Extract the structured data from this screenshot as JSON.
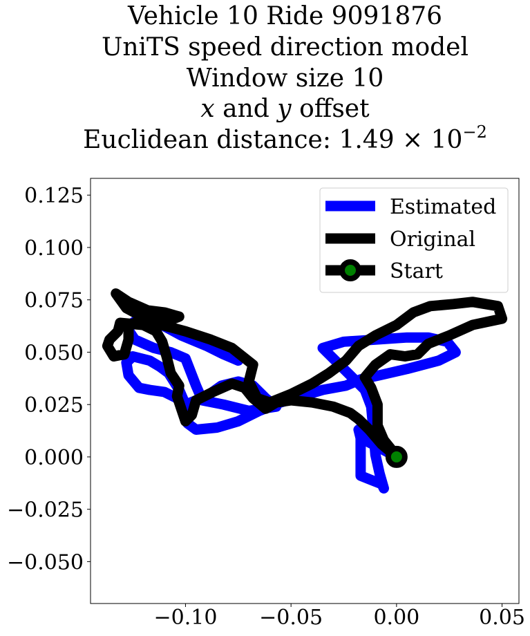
{
  "chart_data": {
    "type": "line",
    "title_lines": {
      "line1": "Vehicle 10 Ride 9091876",
      "line2": "UniTS speed direction model",
      "line3": "Window size 10",
      "line4_x": "x",
      "line4_and": " and ",
      "line4_y": "y",
      "line4_rest": " offset",
      "line5_prefix": "Euclidean distance: ",
      "line5_mantissa": "1.49 × 10",
      "line5_exponent": "−2"
    },
    "xlabel": "",
    "ylabel": "",
    "xlim": [
      -0.145,
      0.058
    ],
    "ylim": [
      -0.07,
      0.133
    ],
    "x_ticks": [
      {
        "value": -0.1,
        "label": "−0.10"
      },
      {
        "value": -0.05,
        "label": "−0.05"
      },
      {
        "value": 0.0,
        "label": "0.00"
      },
      {
        "value": 0.05,
        "label": "0.05"
      }
    ],
    "y_ticks": [
      {
        "value": -0.05,
        "label": "−0.050"
      },
      {
        "value": -0.025,
        "label": "−0.025"
      },
      {
        "value": 0.0,
        "label": "0.000"
      },
      {
        "value": 0.025,
        "label": "0.025"
      },
      {
        "value": 0.05,
        "label": "0.050"
      },
      {
        "value": 0.075,
        "label": "0.075"
      },
      {
        "value": 0.1,
        "label": "0.100"
      },
      {
        "value": 0.125,
        "label": "0.125"
      }
    ],
    "grid": false,
    "legend_position": "top-right",
    "legend": [
      {
        "label": "Estimated"
      },
      {
        "label": "Original"
      },
      {
        "label": "Start"
      }
    ],
    "series": [
      {
        "name": "Estimated",
        "color": "#0000ff",
        "points": [
          [
            0.0,
            0.0
          ],
          [
            -0.015,
            0.008
          ],
          [
            -0.018,
            0.013
          ],
          [
            -0.017,
            0.009
          ],
          [
            -0.017,
            0.0
          ],
          [
            -0.017,
            -0.009
          ],
          [
            -0.012,
            -0.011
          ],
          [
            -0.007,
            -0.013
          ],
          [
            -0.006,
            -0.015
          ],
          [
            -0.008,
            -0.008
          ],
          [
            -0.01,
            0.001
          ],
          [
            -0.011,
            0.013
          ],
          [
            -0.012,
            0.024
          ],
          [
            -0.015,
            0.032
          ],
          [
            -0.02,
            0.037
          ],
          [
            -0.025,
            0.042
          ],
          [
            -0.03,
            0.047
          ],
          [
            -0.035,
            0.052
          ],
          [
            -0.025,
            0.055
          ],
          [
            -0.01,
            0.056
          ],
          [
            0.005,
            0.057
          ],
          [
            0.015,
            0.057
          ],
          [
            0.024,
            0.055
          ],
          [
            0.028,
            0.05
          ],
          [
            0.02,
            0.046
          ],
          [
            0.005,
            0.042
          ],
          [
            -0.008,
            0.039
          ],
          [
            -0.017,
            0.037
          ],
          [
            -0.024,
            0.034
          ],
          [
            -0.035,
            0.032
          ],
          [
            -0.045,
            0.029
          ],
          [
            -0.055,
            0.026
          ],
          [
            -0.065,
            0.022
          ],
          [
            -0.075,
            0.017
          ],
          [
            -0.085,
            0.014
          ],
          [
            -0.095,
            0.013
          ],
          [
            -0.099,
            0.016
          ],
          [
            -0.1,
            0.022
          ],
          [
            -0.104,
            0.028
          ],
          [
            -0.11,
            0.031
          ],
          [
            -0.117,
            0.032
          ],
          [
            -0.122,
            0.033
          ],
          [
            -0.127,
            0.039
          ],
          [
            -0.128,
            0.045
          ],
          [
            -0.125,
            0.048
          ],
          [
            -0.117,
            0.046
          ],
          [
            -0.112,
            0.043
          ],
          [
            -0.108,
            0.04
          ],
          [
            -0.103,
            0.032
          ],
          [
            -0.1,
            0.025
          ],
          [
            -0.09,
            0.029
          ],
          [
            -0.083,
            0.034
          ],
          [
            -0.075,
            0.036
          ],
          [
            -0.068,
            0.034
          ],
          [
            -0.062,
            0.028
          ],
          [
            -0.057,
            0.024
          ],
          [
            -0.07,
            0.022
          ],
          [
            -0.082,
            0.025
          ],
          [
            -0.092,
            0.027
          ],
          [
            -0.095,
            0.034
          ],
          [
            -0.1,
            0.047
          ],
          [
            -0.107,
            0.05
          ],
          [
            -0.115,
            0.052
          ],
          [
            -0.124,
            0.056
          ],
          [
            -0.128,
            0.062
          ],
          [
            -0.122,
            0.066
          ],
          [
            -0.113,
            0.064
          ],
          [
            -0.102,
            0.058
          ],
          [
            -0.09,
            0.053
          ],
          [
            -0.082,
            0.049
          ],
          [
            -0.075,
            0.046
          ]
        ]
      },
      {
        "name": "Original",
        "color": "#000000",
        "points": [
          [
            0.0,
            0.0
          ],
          [
            -0.007,
            0.006
          ],
          [
            -0.013,
            0.013
          ],
          [
            -0.018,
            0.018
          ],
          [
            -0.022,
            0.021
          ],
          [
            -0.03,
            0.024
          ],
          [
            -0.04,
            0.026
          ],
          [
            -0.05,
            0.027
          ],
          [
            -0.057,
            0.026
          ],
          [
            -0.062,
            0.023
          ],
          [
            -0.068,
            0.028
          ],
          [
            -0.072,
            0.033
          ],
          [
            -0.078,
            0.035
          ],
          [
            -0.087,
            0.031
          ],
          [
            -0.095,
            0.027
          ],
          [
            -0.097,
            0.02
          ],
          [
            -0.1,
            0.017
          ],
          [
            -0.102,
            0.023
          ],
          [
            -0.104,
            0.029
          ],
          [
            -0.103,
            0.034
          ],
          [
            -0.107,
            0.04
          ],
          [
            -0.109,
            0.048
          ],
          [
            -0.111,
            0.055
          ],
          [
            -0.114,
            0.06
          ],
          [
            -0.12,
            0.063
          ],
          [
            -0.131,
            0.064
          ],
          [
            -0.132,
            0.06
          ],
          [
            -0.136,
            0.056
          ],
          [
            -0.137,
            0.053
          ],
          [
            -0.134,
            0.048
          ],
          [
            -0.129,
            0.049
          ],
          [
            -0.127,
            0.056
          ],
          [
            -0.127,
            0.063
          ],
          [
            -0.118,
            0.066
          ],
          [
            -0.108,
            0.065
          ],
          [
            -0.103,
            0.067
          ],
          [
            -0.11,
            0.069
          ],
          [
            -0.118,
            0.07
          ],
          [
            -0.127,
            0.074
          ],
          [
            -0.133,
            0.078
          ],
          [
            -0.128,
            0.071
          ],
          [
            -0.115,
            0.064
          ],
          [
            -0.1,
            0.06
          ],
          [
            -0.088,
            0.056
          ],
          [
            -0.078,
            0.052
          ],
          [
            -0.068,
            0.044
          ],
          [
            -0.07,
            0.036
          ],
          [
            -0.066,
            0.028
          ],
          [
            -0.06,
            0.026
          ],
          [
            -0.05,
            0.03
          ],
          [
            -0.04,
            0.035
          ],
          [
            -0.032,
            0.04
          ],
          [
            -0.024,
            0.046
          ],
          [
            -0.018,
            0.053
          ],
          [
            -0.01,
            0.058
          ],
          [
            0.0,
            0.063
          ],
          [
            0.008,
            0.069
          ],
          [
            0.016,
            0.072
          ],
          [
            0.027,
            0.073
          ],
          [
            0.036,
            0.074
          ],
          [
            0.048,
            0.072
          ],
          [
            0.05,
            0.066
          ],
          [
            0.036,
            0.063
          ],
          [
            0.025,
            0.058
          ],
          [
            0.015,
            0.054
          ],
          [
            0.01,
            0.049
          ],
          [
            0.004,
            0.048
          ],
          [
            -0.003,
            0.049
          ],
          [
            -0.01,
            0.044
          ],
          [
            -0.015,
            0.038
          ],
          [
            -0.012,
            0.033
          ],
          [
            -0.009,
            0.025
          ],
          [
            -0.009,
            0.015
          ],
          [
            -0.006,
            0.008
          ],
          [
            -0.002,
            0.003
          ],
          [
            0.0,
            0.0
          ]
        ]
      }
    ],
    "start_point": {
      "x": 0.0,
      "y": 0.0,
      "marker_color": "#008000",
      "edge_color": "#000000"
    }
  }
}
